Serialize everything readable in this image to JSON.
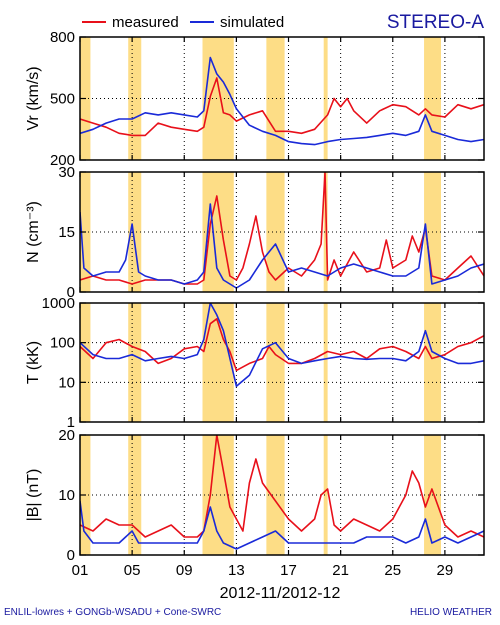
{
  "header": {
    "spacecraft": "STEREO-A",
    "legend": [
      {
        "label": "measured",
        "color": "#e8101a"
      },
      {
        "label": "simulated",
        "color": "#1a2ad8"
      }
    ]
  },
  "footer": {
    "left": "ENLIL-lowres + GONGb-WSADU + Cone-SWRC",
    "right": "HELIO WEATHER"
  },
  "colors": {
    "measured": "#e8101a",
    "simulated": "#1a2ad8",
    "shade": "#fddd86",
    "axis": "#000000",
    "text_accent": "#1a1aa0"
  },
  "chart_data": {
    "type": "line",
    "xlabel": "2012-11/2012-12",
    "x_range": [
      1,
      32
    ],
    "x_ticks": [
      1,
      5,
      9,
      13,
      17,
      21,
      25,
      29
    ],
    "x_tick_labels": [
      "01",
      "05",
      "09",
      "13",
      "17",
      "21",
      "25",
      "29"
    ],
    "shaded_intervals": [
      [
        1,
        1.8
      ],
      [
        4.7,
        5.7
      ],
      [
        10.4,
        12.8
      ],
      [
        15.3,
        16.7
      ],
      [
        19.7,
        20.0
      ],
      [
        27.4,
        28.7
      ]
    ],
    "panels": [
      {
        "ylabel": "Vr (km/s)",
        "ylim": [
          200,
          800
        ],
        "y_ticks": [
          200,
          500,
          800
        ],
        "y_tick_labels": [
          "200",
          "500",
          "800"
        ],
        "scale": "linear",
        "series": [
          {
            "name": "measured",
            "x": [
              1,
              2,
              3,
              4,
              5,
              6,
              7,
              8,
              9,
              10,
              10.5,
              11,
              11.5,
              12,
              12.5,
              13,
              14,
              15,
              16,
              17,
              18,
              19,
              20,
              20.5,
              21,
              21.5,
              22,
              23,
              24,
              25,
              26,
              27,
              27.5,
              28,
              29,
              30,
              31,
              32
            ],
            "y": [
              400,
              380,
              360,
              330,
              320,
              320,
              380,
              360,
              350,
              340,
              360,
              510,
              600,
              430,
              420,
              390,
              420,
              440,
              340,
              340,
              330,
              350,
              420,
              500,
              460,
              500,
              440,
              380,
              440,
              470,
              460,
              420,
              450,
              420,
              410,
              470,
              450,
              470
            ]
          },
          {
            "name": "simulated",
            "x": [
              1,
              2,
              3,
              4,
              5,
              6,
              7,
              8,
              9,
              10,
              10.5,
              11,
              11.5,
              12,
              12.5,
              13,
              14,
              15,
              16,
              17,
              18,
              19,
              20,
              21,
              22,
              23,
              24,
              25,
              26,
              27,
              27.5,
              28,
              29,
              30,
              31,
              32
            ],
            "y": [
              330,
              350,
              380,
              400,
              400,
              430,
              420,
              430,
              420,
              410,
              440,
              700,
              620,
              580,
              520,
              450,
              370,
              340,
              320,
              290,
              280,
              275,
              290,
              300,
              305,
              310,
              320,
              330,
              320,
              340,
              420,
              340,
              320,
              300,
              290,
              300
            ]
          }
        ]
      },
      {
        "ylabel": "N (cm⁻³)",
        "ylim": [
          0,
          30
        ],
        "y_ticks": [
          0,
          15,
          30
        ],
        "y_tick_labels": [
          "0",
          "15",
          "30"
        ],
        "scale": "linear",
        "series": [
          {
            "name": "measured",
            "x": [
              1,
              2,
              3,
              4,
              5,
              6,
              7,
              8,
              9,
              10,
              10.5,
              11,
              11.5,
              12,
              12.5,
              13,
              13.5,
              14,
              14.5,
              15,
              15.5,
              16,
              17,
              18,
              19,
              19.5,
              19.8,
              20,
              20.5,
              21,
              22,
              23,
              24,
              24.5,
              25,
              26,
              26.5,
              27,
              27.5,
              28,
              29,
              30,
              31,
              32
            ],
            "y": [
              3,
              4,
              3,
              3,
              2,
              3,
              3,
              3,
              2,
              2,
              3,
              17,
              24,
              13,
              4,
              3,
              6,
              12,
              19,
              10,
              5,
              3,
              6,
              4,
              8,
              12,
              30,
              3,
              8,
              4,
              10,
              5,
              6,
              13,
              6,
              8,
              14,
              10,
              16,
              4,
              3,
              6,
              9,
              4
            ]
          },
          {
            "name": "simulated",
            "x": [
              1,
              1.3,
              2,
              3,
              4,
              4.5,
              5,
              5.5,
              6,
              7,
              8,
              9,
              10,
              10.5,
              11,
              11.5,
              12,
              13,
              14,
              15,
              16,
              17,
              18,
              19,
              20,
              21,
              22,
              23,
              24,
              25,
              26,
              27,
              27.5,
              28,
              29,
              30,
              31,
              32
            ],
            "y": [
              20,
              6,
              4,
              5,
              5,
              8,
              17,
              5,
              4,
              3,
              3,
              2,
              3,
              5,
              22,
              6,
              3,
              1,
              3,
              8,
              12,
              5,
              6,
              5,
              4,
              6,
              7,
              6,
              5,
              4,
              4,
              6,
              17,
              2,
              3,
              4,
              6,
              7
            ]
          }
        ]
      },
      {
        "ylabel": "T (kK)",
        "ylim": [
          1,
          1000
        ],
        "y_ticks": [
          1,
          10,
          100,
          1000
        ],
        "y_tick_labels": [
          "1",
          "10",
          "100",
          "1000"
        ],
        "scale": "log",
        "series": [
          {
            "name": "measured",
            "x": [
              1,
              2,
              3,
              4,
              5,
              6,
              7,
              8,
              9,
              10,
              10.5,
              11,
              11.5,
              12,
              12.5,
              13,
              14,
              15,
              15.5,
              16,
              17,
              18,
              19,
              20,
              21,
              22,
              23,
              24,
              25,
              26,
              27,
              27.5,
              28,
              29,
              30,
              31,
              32
            ],
            "y": [
              80,
              40,
              100,
              120,
              80,
              60,
              30,
              40,
              70,
              80,
              60,
              300,
              400,
              120,
              60,
              20,
              30,
              40,
              80,
              50,
              30,
              30,
              40,
              60,
              50,
              60,
              40,
              70,
              80,
              60,
              40,
              80,
              40,
              50,
              80,
              100,
              150
            ]
          },
          {
            "name": "simulated",
            "x": [
              1,
              2,
              3,
              4,
              5,
              6,
              7,
              8,
              9,
              10,
              10.5,
              11,
              11.5,
              12,
              12.5,
              13,
              14,
              15,
              16,
              17,
              18,
              19,
              20,
              21,
              22,
              23,
              24,
              25,
              26,
              27,
              27.5,
              28,
              29,
              30,
              31,
              32
            ],
            "y": [
              100,
              50,
              40,
              40,
              50,
              35,
              40,
              45,
              40,
              50,
              120,
              1000,
              500,
              200,
              40,
              8,
              15,
              70,
              100,
              40,
              30,
              35,
              40,
              45,
              40,
              38,
              40,
              40,
              35,
              60,
              200,
              60,
              40,
              30,
              30,
              35
            ]
          }
        ]
      },
      {
        "ylabel": "|B| (nT)",
        "ylim": [
          0,
          20
        ],
        "y_ticks": [
          0,
          10,
          20
        ],
        "y_tick_labels": [
          "0",
          "10",
          "20"
        ],
        "scale": "linear",
        "series": [
          {
            "name": "measured",
            "x": [
              1,
              2,
              3,
              4,
              5,
              6,
              7,
              8,
              9,
              10,
              10.5,
              11,
              11.5,
              12,
              12.5,
              13,
              13.5,
              14,
              14.5,
              15,
              16,
              17,
              18,
              19,
              19.5,
              20,
              20.5,
              21,
              22,
              23,
              24,
              25,
              26,
              26.5,
              27,
              27.5,
              28,
              29,
              30,
              31,
              32
            ],
            "y": [
              5,
              4,
              6,
              5,
              5,
              3,
              4,
              5,
              3,
              3,
              4,
              10,
              20,
              14,
              8,
              6,
              4,
              12,
              16,
              12,
              9,
              6,
              4,
              6,
              10,
              11,
              5,
              4,
              6,
              5,
              4,
              6,
              10,
              14,
              12,
              8,
              11,
              5,
              3,
              4,
              3
            ]
          },
          {
            "name": "simulated",
            "x": [
              1,
              1.3,
              2,
              3,
              4,
              4.5,
              5,
              5.5,
              6,
              7,
              8,
              9,
              10,
              10.5,
              11,
              11.5,
              12,
              13,
              14,
              15,
              16,
              17,
              18,
              19,
              20,
              21,
              22,
              23,
              24,
              25,
              26,
              27,
              27.5,
              28,
              29,
              30,
              31,
              32
            ],
            "y": [
              9,
              4,
              2,
              2,
              2,
              3,
              4,
              2,
              2,
              2,
              2,
              2,
              2,
              4,
              8,
              4,
              2,
              1,
              2,
              3,
              4,
              2,
              2,
              2,
              2,
              2,
              2,
              3,
              3,
              3,
              2,
              3,
              6,
              2,
              3,
              2,
              3,
              4
            ]
          }
        ]
      }
    ]
  }
}
